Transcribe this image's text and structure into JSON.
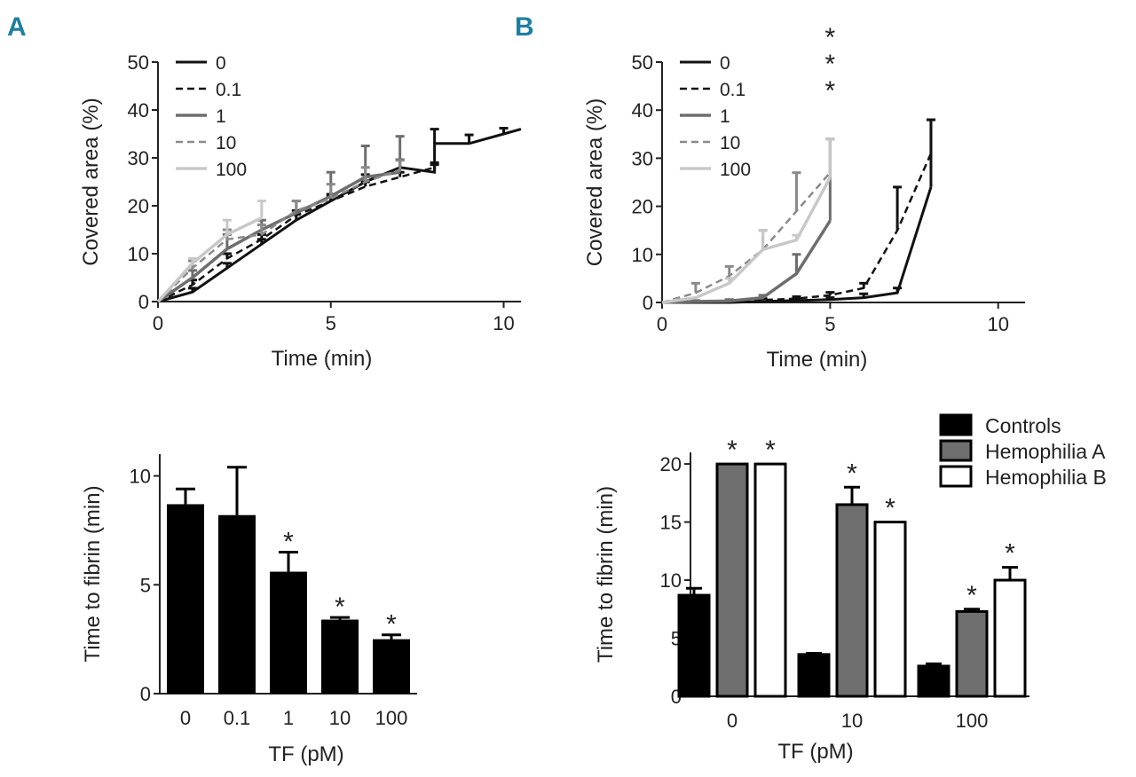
{
  "panel_labels": {
    "a": "A",
    "b": "B"
  },
  "colors": {
    "s0": "#111111",
    "s01": "#111111",
    "s1": "#6e6e6e",
    "s10": "#8a8a8a",
    "s100": "#c8c8c8",
    "controls": "#000000",
    "hemA": "#6e6e6e",
    "hemB": "#ffffff",
    "panel_label": "#1f7ea0"
  },
  "chart_data": [
    {
      "id": "A-top",
      "type": "line",
      "xlabel": "Time (min)",
      "ylabel": "Covered area (%)",
      "xlim": [
        0,
        10.5
      ],
      "ylim": [
        0,
        50
      ],
      "xticks": [
        0,
        5,
        10
      ],
      "yticks": [
        0,
        10,
        20,
        30,
        40,
        50
      ],
      "legend": [
        "0",
        "0.1",
        "1",
        "10",
        "100"
      ],
      "series": [
        {
          "name": "0",
          "x": [
            0,
            1,
            2,
            3,
            4,
            5,
            6,
            7,
            8,
            8,
            9,
            10,
            10.5
          ],
          "y": [
            0,
            2,
            7,
            12,
            17,
            21,
            25,
            28,
            27,
            33,
            33,
            35,
            36
          ],
          "err": [
            0,
            0.8,
            1,
            1,
            1.2,
            1.4,
            1.5,
            1.6,
            1.6,
            3,
            1.8,
            1.2,
            0
          ]
        },
        {
          "name": "0.1",
          "x": [
            0,
            1,
            2,
            3,
            4,
            5,
            6,
            7,
            8
          ],
          "y": [
            0,
            3.5,
            9,
            13,
            18,
            21,
            24,
            26,
            28
          ],
          "err": [
            0,
            1,
            1,
            1,
            1,
            1,
            1,
            1,
            1
          ]
        },
        {
          "name": "1",
          "x": [
            0,
            1,
            2,
            3,
            4,
            5,
            6,
            7
          ],
          "y": [
            0,
            5,
            11,
            15,
            18.5,
            22,
            26,
            27
          ],
          "err": [
            0,
            1.5,
            3,
            2,
            2.5,
            5,
            6.5,
            7.5
          ]
        },
        {
          "name": "10",
          "x": [
            0,
            1,
            2,
            3,
            4,
            5,
            6,
            7
          ],
          "y": [
            0,
            7,
            13,
            14,
            19,
            21.5,
            25,
            27.5
          ],
          "err": [
            0,
            1.5,
            2,
            2,
            2,
            3,
            3,
            2
          ]
        },
        {
          "name": "100",
          "x": [
            0,
            1,
            2,
            3
          ],
          "y": [
            0,
            8,
            14,
            17.5
          ],
          "err": [
            0,
            1,
            3,
            3.5
          ]
        }
      ]
    },
    {
      "id": "B-top",
      "type": "line",
      "xlabel": "Time (min)",
      "ylabel": "Covered area (%)",
      "xlim": [
        0,
        10.8
      ],
      "ylim": [
        0,
        50
      ],
      "xticks": [
        0,
        5,
        10
      ],
      "yticks": [
        0,
        10,
        20,
        30,
        40,
        50
      ],
      "legend": [
        "0",
        "0.1",
        "1",
        "10",
        "100"
      ],
      "annotation": [
        "*",
        "*",
        "*"
      ],
      "series": [
        {
          "name": "0",
          "x": [
            0,
            1,
            2,
            3,
            4,
            5,
            6,
            7,
            8
          ],
          "y": [
            0,
            0,
            0,
            0.2,
            0.4,
            0.6,
            1,
            2,
            24
          ],
          "err": [
            0,
            0,
            0,
            0,
            0.3,
            0.4,
            0.8,
            1,
            14
          ]
        },
        {
          "name": "0.1",
          "x": [
            0,
            1,
            2,
            3,
            4,
            5,
            6,
            7,
            8
          ],
          "y": [
            0,
            0,
            0,
            0.5,
            0.8,
            1.5,
            3,
            15,
            31
          ],
          "err": [
            0,
            0,
            0,
            0.3,
            0.4,
            0.6,
            1,
            9,
            7
          ]
        },
        {
          "name": "1",
          "x": [
            0,
            1,
            2,
            3,
            4,
            5
          ],
          "y": [
            0,
            0.2,
            0.3,
            1,
            6,
            17
          ],
          "err": [
            0,
            0.2,
            0.3,
            0.5,
            4,
            17
          ]
        },
        {
          "name": "10",
          "x": [
            0,
            1,
            2,
            3,
            4,
            5
          ],
          "y": [
            0,
            2,
            5.5,
            11,
            19,
            27
          ],
          "err": [
            0,
            2,
            2,
            4,
            8,
            7
          ]
        },
        {
          "name": "100",
          "x": [
            0,
            1,
            2,
            3,
            4,
            5
          ],
          "y": [
            0,
            1,
            4,
            11,
            13,
            26
          ],
          "err": [
            0,
            0,
            1,
            4,
            1,
            8
          ]
        }
      ]
    },
    {
      "id": "A-bottom",
      "type": "bar",
      "xlabel": "TF (pM)",
      "ylabel": "Time to fibrin (min)",
      "ylim": [
        0,
        11
      ],
      "yticks": [
        0,
        5,
        10
      ],
      "categories": [
        "0",
        "0.1",
        "1",
        "10",
        "100"
      ],
      "values": [
        8.7,
        8.2,
        5.6,
        3.4,
        2.5
      ],
      "errors": [
        0.7,
        2.2,
        0.9,
        0.1,
        0.2
      ],
      "annotations": [
        "",
        "",
        "*",
        "*",
        "*"
      ]
    },
    {
      "id": "B-bottom",
      "type": "bar",
      "xlabel": "TF (pM)",
      "ylabel": "Time to fibrin (min)",
      "ylim": [
        0,
        21
      ],
      "yticks": [
        0,
        5,
        10,
        15,
        20
      ],
      "categories": [
        "0",
        "10",
        "100"
      ],
      "legend": [
        "Controls",
        "Hemophilia A",
        "Hemophilia B"
      ],
      "series": [
        {
          "name": "Controls",
          "values": [
            8.7,
            3.6,
            2.6
          ],
          "errors": [
            0.6,
            0.1,
            0.2
          ],
          "annotations": [
            "",
            "",
            ""
          ]
        },
        {
          "name": "Hemophilia A",
          "values": [
            20,
            16.5,
            7.3
          ],
          "errors": [
            0,
            1.5,
            0.2
          ],
          "annotations": [
            "*",
            "*",
            "*"
          ]
        },
        {
          "name": "Hemophilia B",
          "values": [
            20,
            15,
            10
          ],
          "errors": [
            0,
            0,
            1.1
          ],
          "annotations": [
            "*",
            "*",
            "*"
          ]
        }
      ]
    }
  ]
}
